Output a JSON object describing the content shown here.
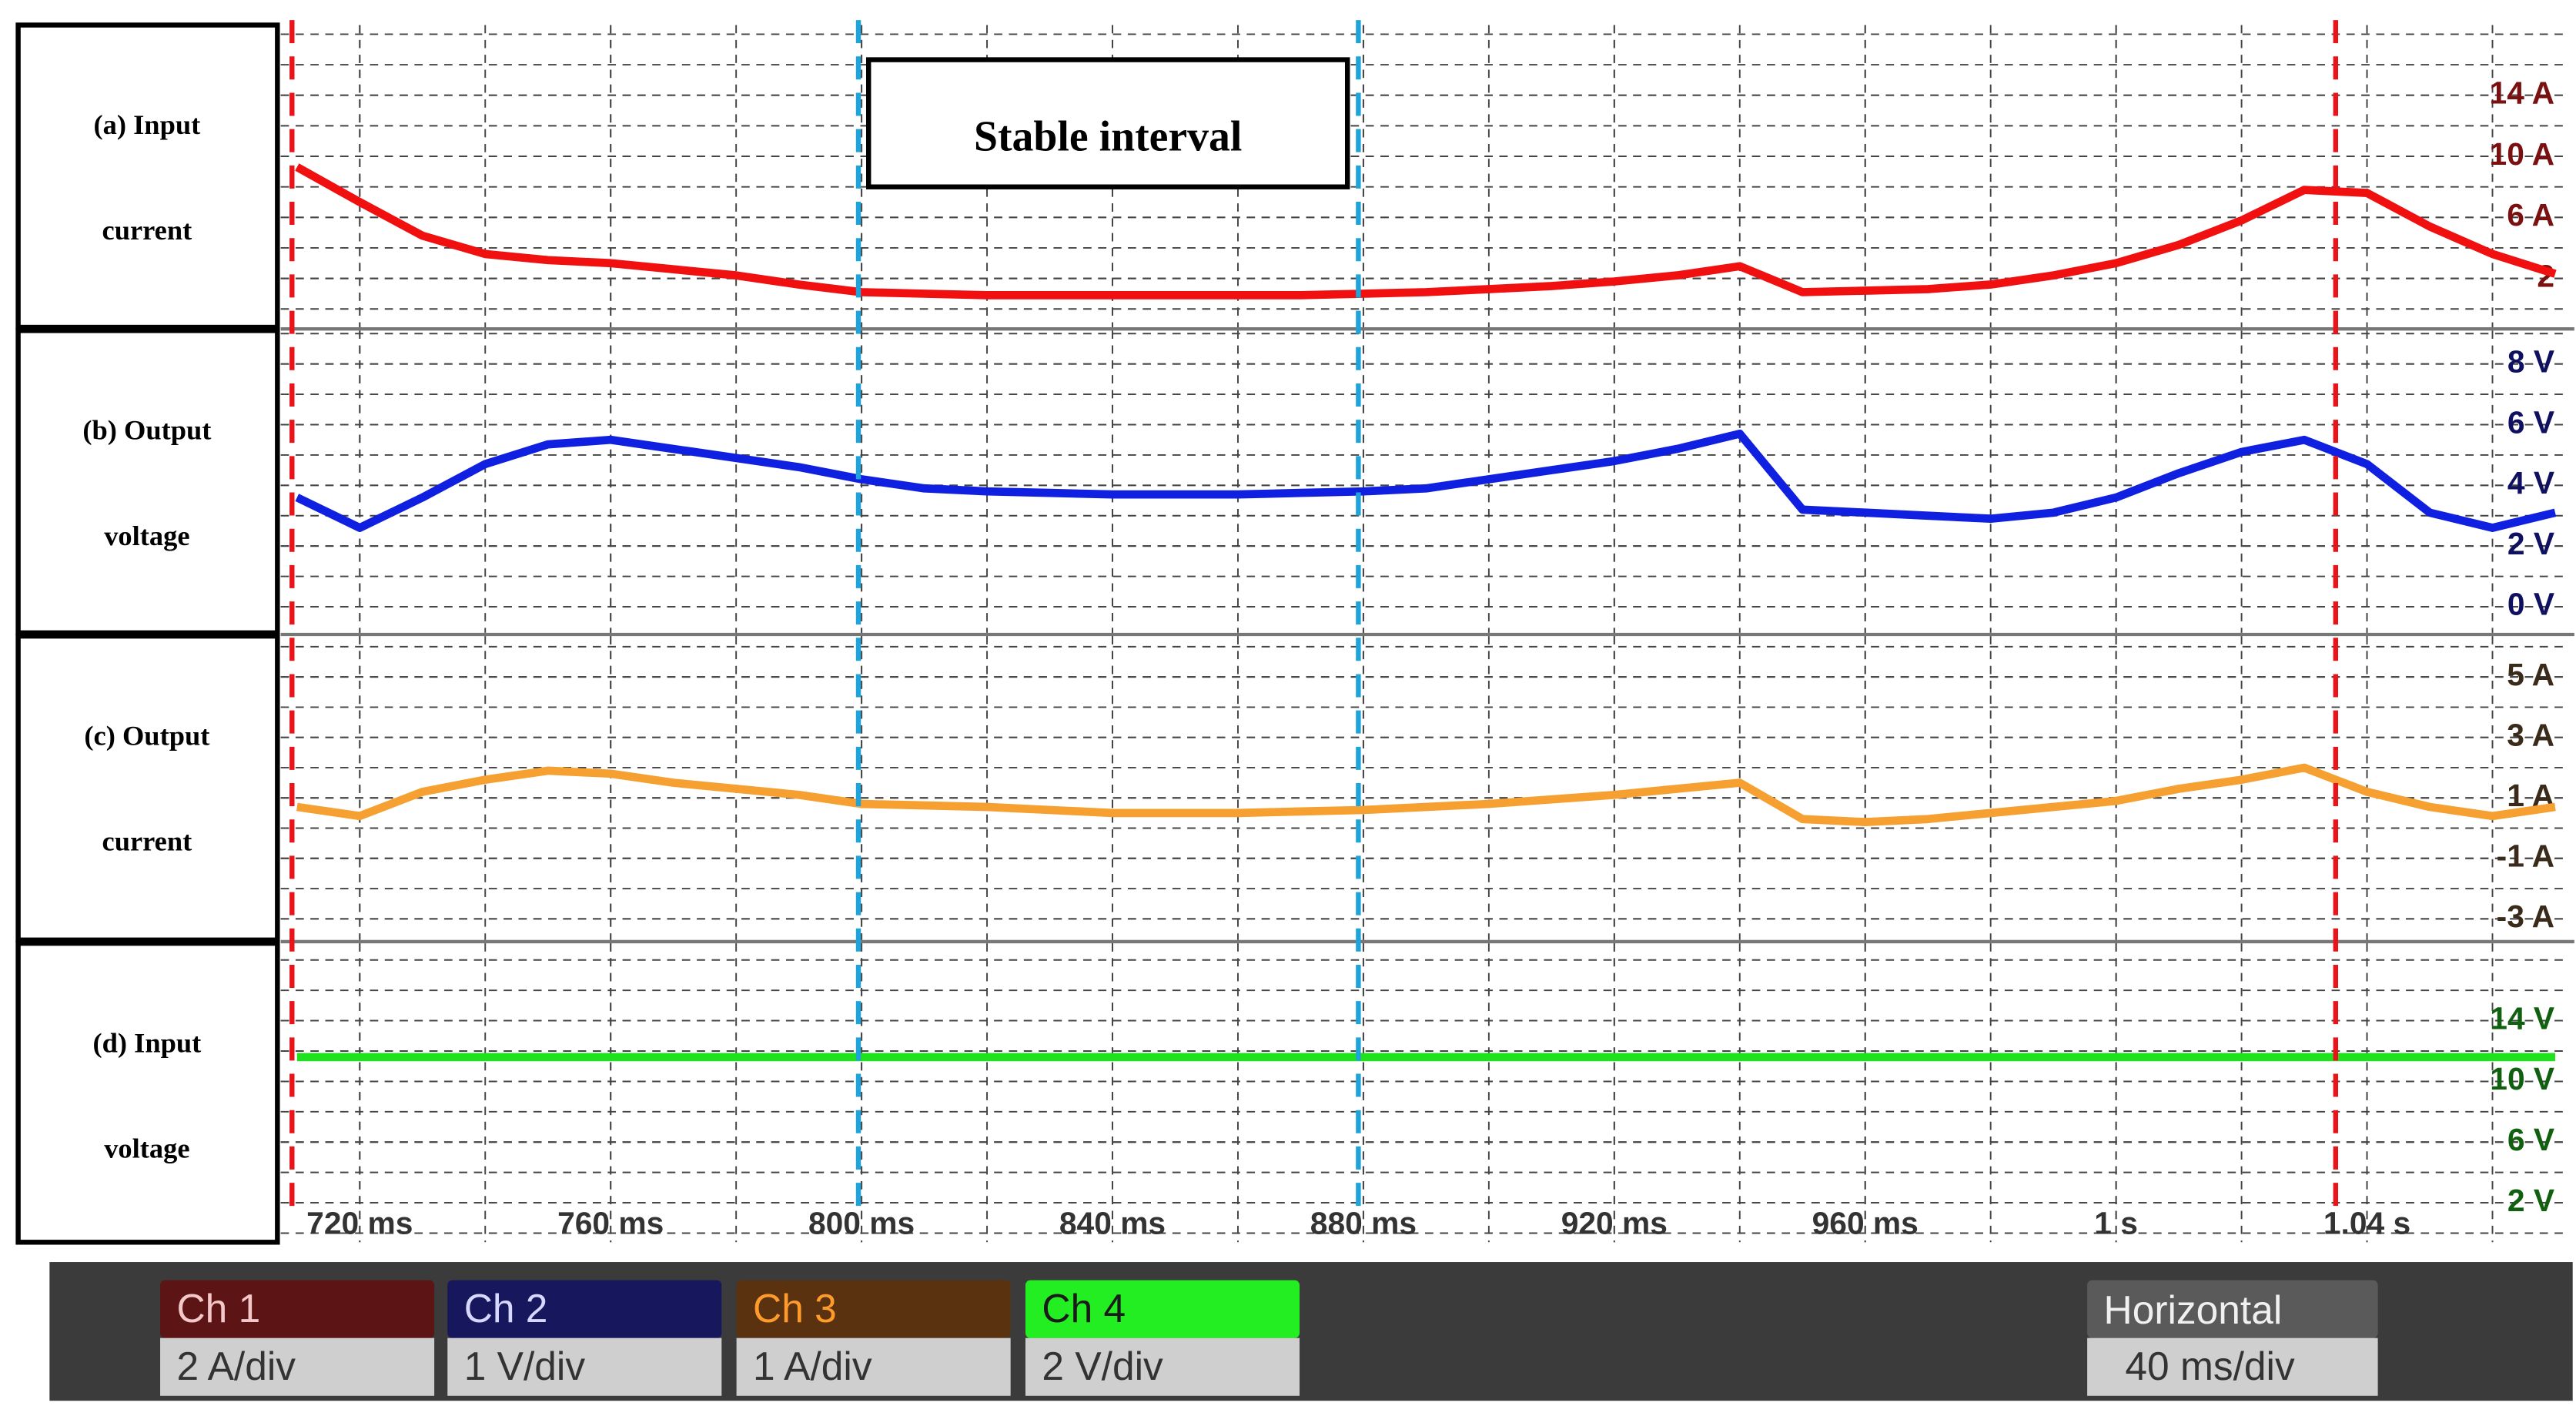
{
  "chart_data": {
    "type": "line",
    "x": [
      710,
      720,
      730,
      740,
      750,
      760,
      770,
      780,
      790,
      800,
      810,
      820,
      830,
      840,
      850,
      860,
      870,
      880,
      890,
      900,
      910,
      920,
      930,
      940,
      950,
      960,
      970,
      980,
      990,
      1000,
      1010,
      1020,
      1030,
      1040,
      1050,
      1060,
      1070
    ],
    "xlim": [
      707.4,
      1072
    ],
    "xticks": [
      {
        "value": 720,
        "label": "720 ms"
      },
      {
        "value": 760,
        "label": "760 ms"
      },
      {
        "value": 800,
        "label": "800 ms"
      },
      {
        "value": 840,
        "label": "840 ms"
      },
      {
        "value": 880,
        "label": "880 ms"
      },
      {
        "value": 920,
        "label": "920 ms"
      },
      {
        "value": 960,
        "label": "960 ms"
      },
      {
        "value": 1000,
        "label": "1 s"
      },
      {
        "value": 1040,
        "label": "1.04 s"
      }
    ],
    "grid": true,
    "panels": [
      {
        "label_lines": [
          "(a) Input",
          "current"
        ],
        "ylim": [
          -1.2,
          18.6
        ],
        "tick_color": "#7a1010",
        "yticks": [
          2,
          {
            "value": 6,
            "label": "6 A"
          },
          {
            "value": 10,
            "label": "10 A"
          },
          {
            "value": 14,
            "label": "14 A"
          }
        ],
        "series": [
          {
            "name": "Ch 1",
            "scale": "2 A/div",
            "color": "#f01010",
            "values": [
              9.3,
              7.0,
              4.8,
              3.6,
              3.2,
              3.0,
              2.6,
              2.2,
              1.6,
              1.1,
              1.0,
              0.9,
              0.9,
              0.9,
              0.9,
              0.9,
              0.9,
              1.0,
              1.1,
              1.3,
              1.5,
              1.8,
              2.2,
              2.8,
              1.1,
              1.2,
              1.3,
              1.6,
              2.2,
              3.0,
              4.2,
              5.8,
              7.8,
              7.6,
              5.4,
              3.6,
              2.3
            ]
          }
        ]
      },
      {
        "label_lines": [
          "(b) Output",
          "voltage"
        ],
        "ylim": [
          -0.86,
          9.1
        ],
        "tick_color": "#101060",
        "yticks": [
          {
            "value": 0,
            "label": "0 V"
          },
          {
            "value": 2,
            "label": "2 V"
          },
          {
            "value": 4,
            "label": "4 V"
          },
          {
            "value": 6,
            "label": "6 V"
          },
          {
            "value": 8,
            "label": "8 V"
          }
        ],
        "series": [
          {
            "name": "Ch 2",
            "scale": "1 V/div",
            "color": "#1020e0",
            "values": [
              3.6,
              2.6,
              3.6,
              4.7,
              5.35,
              5.5,
              5.2,
              4.9,
              4.6,
              4.2,
              3.9,
              3.8,
              3.75,
              3.7,
              3.7,
              3.7,
              3.75,
              3.8,
              3.9,
              4.2,
              4.5,
              4.8,
              5.2,
              5.7,
              3.2,
              3.1,
              3.0,
              2.9,
              3.1,
              3.6,
              4.4,
              5.1,
              5.5,
              4.7,
              3.1,
              2.6,
              3.1
            ]
          }
        ]
      },
      {
        "label_lines": [
          "(c) Output",
          "current"
        ],
        "ylim": [
          -3.7,
          6.35
        ],
        "tick_color": "#3a2a1a",
        "yticks": [
          {
            "value": -3,
            "label": "-3 A"
          },
          {
            "value": -1,
            "label": "-1 A"
          },
          {
            "value": 1,
            "label": "1 A"
          },
          {
            "value": 3,
            "label": "3 A"
          },
          {
            "value": 5,
            "label": "5 A"
          }
        ],
        "series": [
          {
            "name": "Ch 3",
            "scale": "1 A/div",
            "color": "#f5a030",
            "values": [
              0.7,
              0.4,
              1.2,
              1.6,
              1.9,
              1.8,
              1.5,
              1.3,
              1.1,
              0.8,
              0.75,
              0.7,
              0.6,
              0.5,
              0.5,
              0.5,
              0.55,
              0.6,
              0.7,
              0.8,
              0.95,
              1.1,
              1.3,
              1.5,
              0.3,
              0.2,
              0.3,
              0.5,
              0.7,
              0.9,
              1.3,
              1.6,
              2.0,
              1.2,
              0.7,
              0.4,
              0.7
            ]
          }
        ]
      },
      {
        "label_lines": [
          "(d) Input",
          "voltage"
        ],
        "ylim": [
          -0.6,
          19.1
        ],
        "tick_color": "#106010",
        "yticks": [
          {
            "value": 2,
            "label": "2 V"
          },
          {
            "value": 6,
            "label": "6 V"
          },
          {
            "value": 10,
            "label": "10 V"
          },
          {
            "value": 14,
            "label": "14 V"
          }
        ],
        "series": [
          {
            "name": "Ch 4",
            "scale": "2 V/div",
            "color": "#20e020",
            "values": [
              11.6,
              11.6,
              11.6,
              11.6,
              11.6,
              11.6,
              11.6,
              11.6,
              11.6,
              11.6,
              11.6,
              11.6,
              11.6,
              11.6,
              11.6,
              11.6,
              11.6,
              11.6,
              11.6,
              11.6,
              11.6,
              11.6,
              11.6,
              11.6,
              11.6,
              11.6,
              11.6,
              11.6,
              11.6,
              11.6,
              11.6,
              11.6,
              11.6,
              11.6,
              11.6,
              11.6,
              11.6
            ]
          }
        ]
      }
    ],
    "reference_lines": [
      {
        "x": 709.2,
        "color": "#e8141a"
      },
      {
        "x": 799.5,
        "color": "#1fa3d8"
      },
      {
        "x": 879.2,
        "color": "#1fa3d8"
      },
      {
        "x": 1035,
        "color": "#e8141a"
      }
    ],
    "annotation": "Stable interval",
    "horizontal": {
      "label": "Horizontal",
      "scale": "40 ms/div"
    }
  }
}
